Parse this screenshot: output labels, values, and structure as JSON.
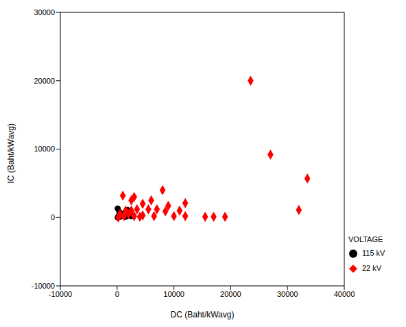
{
  "chart_data": {
    "type": "scatter",
    "x_label": "DC (Baht/kWavg)",
    "y_label": "IC (Baht/kWavg)",
    "legend_title": "VOLTAGE",
    "legend": "right",
    "grid": false,
    "xlim": [
      -10000,
      40000
    ],
    "xticks": [
      -10000,
      0,
      10000,
      20000,
      30000,
      40000
    ],
    "ylim": [
      -10000,
      30000
    ],
    "yticks": [
      -10000,
      0,
      10000,
      20000,
      30000
    ],
    "series": [
      {
        "name": "115 kV",
        "color": "#000000",
        "marker": "circle",
        "x": [
          100,
          100,
          300,
          500,
          1800,
          2000,
          800,
          1500,
          2500,
          400
        ],
        "values": [
          1300,
          0,
          300,
          100,
          1100,
          300,
          500,
          100,
          200,
          800
        ]
      },
      {
        "name": "22 kV",
        "color": "#ff0000",
        "marker": "diamond",
        "x": [
          23500,
          27000,
          33500,
          32000,
          19000,
          17000,
          15500,
          12000,
          12000,
          11000,
          10000,
          9000,
          8500,
          8000,
          6000,
          5500,
          4500,
          4500,
          3500,
          3000,
          2500,
          1000,
          2000,
          1500,
          500,
          200,
          3000,
          4000,
          1200,
          2500,
          7000,
          6500
        ],
        "values": [
          20000,
          9200,
          5700,
          1100,
          100,
          100,
          100,
          2100,
          200,
          1000,
          200,
          1700,
          900,
          4000,
          2500,
          1200,
          2000,
          300,
          1200,
          3000,
          2500,
          3200,
          500,
          1000,
          500,
          0,
          200,
          100,
          200,
          1000,
          1200,
          200
        ]
      }
    ]
  }
}
